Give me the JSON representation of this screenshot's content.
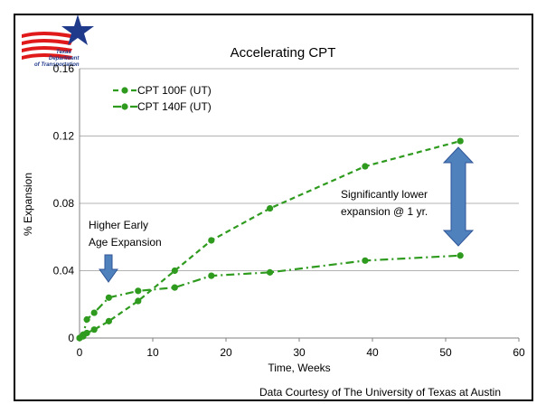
{
  "logo": {
    "name": "texas-dot-logo",
    "line1": "Texas",
    "line2": "Department",
    "line3": "of Transportation"
  },
  "credit": "Data Courtesy of The University of Texas at Austin",
  "chart_data": {
    "type": "line",
    "title": "Accelerating CPT",
    "xlabel": "Time, Weeks",
    "ylabel": "% Expansion",
    "xlim": [
      0,
      60
    ],
    "ylim": [
      0,
      0.16
    ],
    "xticks": [
      0,
      10,
      20,
      30,
      40,
      50,
      60
    ],
    "yticks": [
      0,
      0.04,
      0.08,
      0.12,
      0.16
    ],
    "yticklabels": [
      "0",
      "0.04",
      "0.08",
      "0.12",
      "0.16"
    ],
    "grid": "horizontal",
    "legend": "top-left",
    "series": [
      {
        "name": "CPT 100F (UT)",
        "color": "#2e9a1e",
        "style": "dashed",
        "x": [
          0,
          0.5,
          1,
          2,
          4,
          8,
          13,
          18,
          26,
          39,
          52
        ],
        "y": [
          0,
          0.001,
          0.003,
          0.005,
          0.01,
          0.022,
          0.04,
          0.058,
          0.077,
          0.102,
          0.117
        ]
      },
      {
        "name": "CPT 140F (UT)",
        "color": "#2e9a1e",
        "style": "dash-dot",
        "x": [
          0,
          0.5,
          1,
          2,
          4,
          8,
          13,
          18,
          26,
          39,
          52
        ],
        "y": [
          0,
          0.002,
          0.011,
          0.015,
          0.024,
          0.028,
          0.03,
          0.037,
          0.039,
          0.046,
          0.049
        ]
      }
    ],
    "annotations": [
      {
        "text": [
          "Higher Early",
          "Age Expansion"
        ]
      },
      {
        "text": [
          "Significantly lower",
          "expansion @ 1 yr."
        ]
      }
    ]
  }
}
